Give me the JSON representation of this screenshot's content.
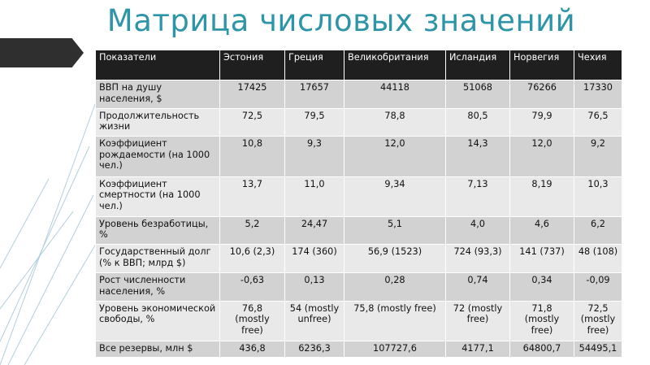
{
  "title": "Матрица числовых значений",
  "headers": [
    "Показатели",
    "Эстония",
    "Греция",
    "Великобритания",
    "Исландия",
    "Норвегия",
    "Чехия"
  ],
  "rows": [
    {
      "label": "ВВП на душу населения, $",
      "values": [
        "17425",
        "17657",
        "44118",
        "51068",
        "76266",
        "17330"
      ]
    },
    {
      "label": "Продолжительность жизни",
      "values": [
        "72,5",
        "79,5",
        "78,8",
        "80,5",
        "79,9",
        "76,5"
      ]
    },
    {
      "label": "Коэффициент рождаемости (на 1000 чел.)",
      "values": [
        "10,8",
        "9,3",
        "12,0",
        "14,3",
        "12,0",
        "9,2"
      ]
    },
    {
      "label": "Коэффициент смертности (на 1000 чел.)",
      "values": [
        "13,7",
        "11,0",
        "9,34",
        "7,13",
        "8,19",
        "10,3"
      ]
    },
    {
      "label": "Уровень безработицы, %",
      "values": [
        "5,2",
        "24,47",
        "5,1",
        "4,0",
        "4,6",
        "6,2"
      ]
    },
    {
      "label": "Государственный долг (% к ВВП; млрд $)",
      "values": [
        "10,6 (2,3)",
        "174 (360)",
        "56,9 (1523)",
        "724 (93,3)",
        "141 (737)",
        "48 (108)"
      ]
    },
    {
      "label": "Рост численности населения, %",
      "values": [
        "-0,63",
        "0,13",
        "0,28",
        "0,74",
        "0,34",
        "-0,09"
      ]
    },
    {
      "label": "Уровень экономической свободы, %",
      "values": [
        "76,8 (mostly free)",
        "54 (mostly unfree)",
        "75,8 (mostly free)",
        "72 (mostly free)",
        "71,8 (mostly free)",
        "72,5 (mostly free)"
      ]
    },
    {
      "label": "Все резервы, млн $",
      "values": [
        "436,8",
        "6236,3",
        "107727,6",
        "4177,1",
        "64800,7",
        "54495,1"
      ]
    }
  ]
}
